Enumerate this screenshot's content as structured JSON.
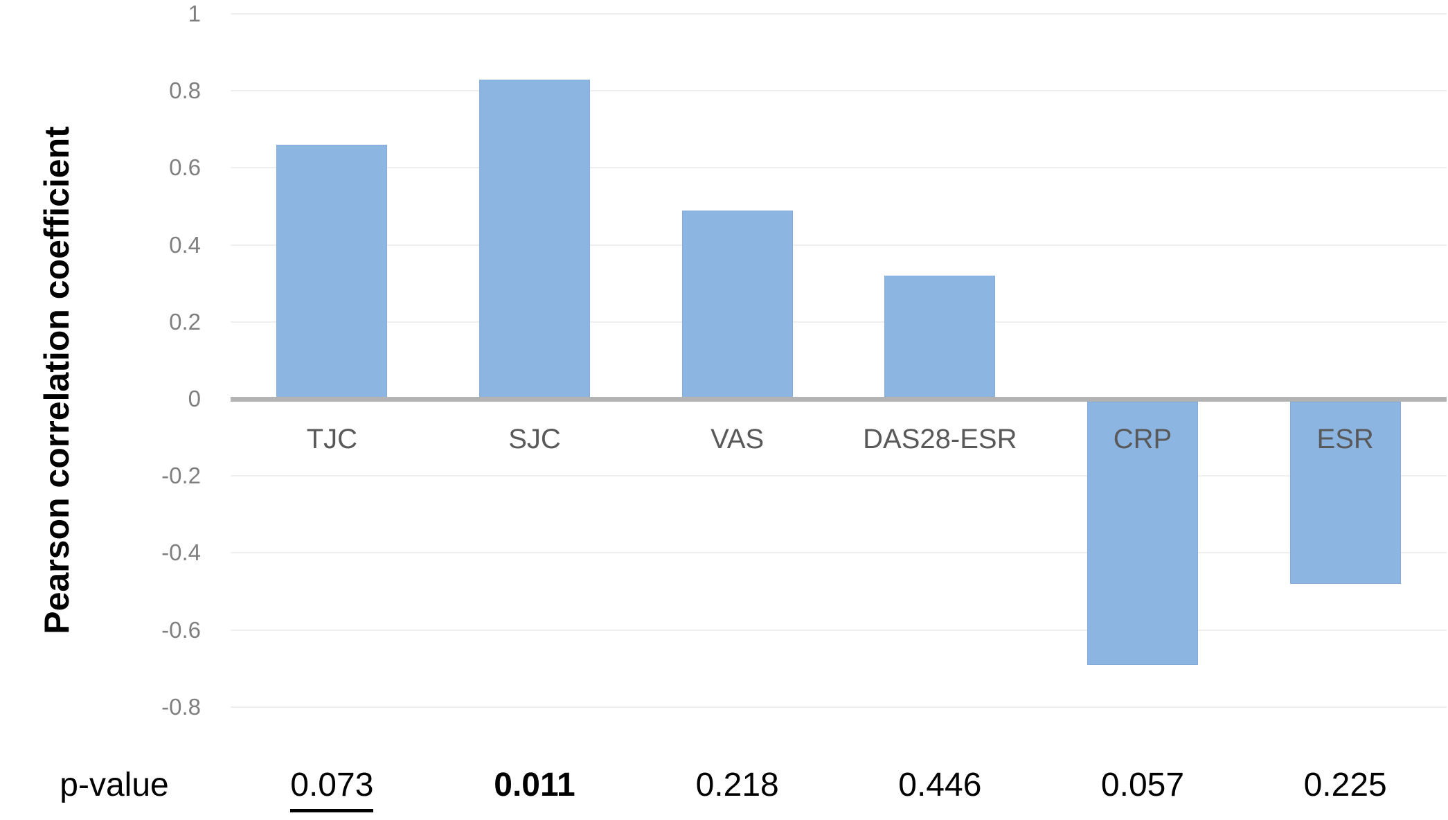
{
  "chart_data": {
    "type": "bar",
    "title": "",
    "ylabel": "Pearson correlation coefficient",
    "xlabel": "",
    "categories": [
      "TJC",
      "SJC",
      "VAS",
      "DAS28-ESR",
      "CRP",
      "ESR"
    ],
    "values": [
      0.66,
      0.83,
      0.49,
      0.32,
      -0.69,
      -0.48
    ],
    "ylim": [
      -0.9,
      1.0
    ],
    "ytick_labels": [
      "1",
      "0.8",
      "0.6",
      "0.4",
      "0.2",
      "0",
      "-0.2",
      "-0.4",
      "-0.6",
      "-0.8"
    ],
    "grid": true,
    "legend": "none",
    "bar_color": "#8cb5e2",
    "p_row": {
      "label": "p-value",
      "values": [
        {
          "text": "0.073",
          "underline": true,
          "bold": false
        },
        {
          "text": "0.011",
          "underline": false,
          "bold": true
        },
        {
          "text": "0.218",
          "underline": false,
          "bold": false
        },
        {
          "text": "0.446",
          "underline": false,
          "bold": false
        },
        {
          "text": "0.057",
          "underline": false,
          "bold": false
        },
        {
          "text": "0.225",
          "underline": false,
          "bold": false
        }
      ]
    }
  },
  "colors": {
    "bar": "#8cb5e2",
    "axis_line": "#b3b3b3",
    "gridline": "#efefef",
    "tick_text": "#7f7f7f",
    "category_text": "#595959",
    "p_text": "#000000"
  }
}
